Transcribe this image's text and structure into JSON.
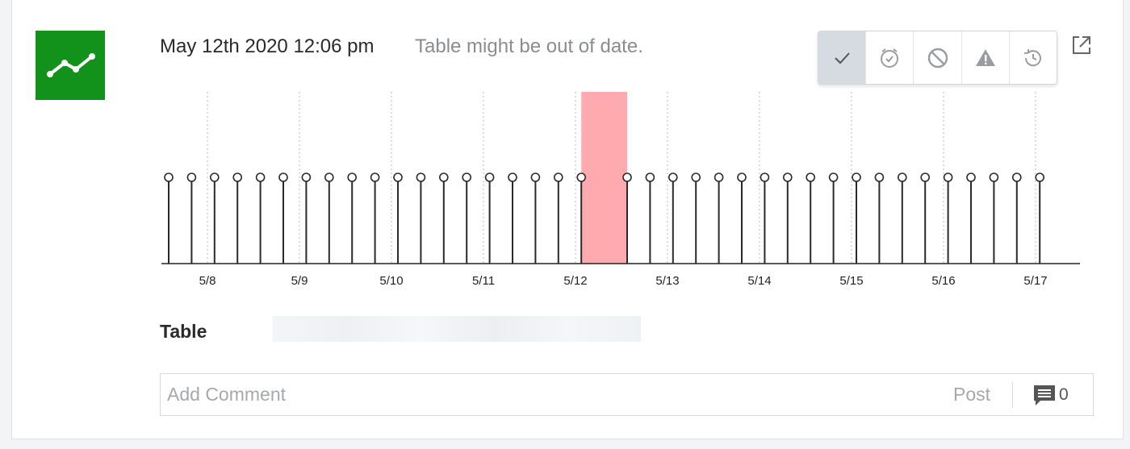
{
  "header": {
    "timestamp": "May 12th 2020 12:06 pm",
    "note": "Table might be out of date."
  },
  "app_icon": "trend-line-icon",
  "toolbar": {
    "buttons": [
      {
        "icon": "checkmark-icon",
        "active": true
      },
      {
        "icon": "alarm-clock-icon",
        "active": false
      },
      {
        "icon": "ban-icon",
        "active": false
      },
      {
        "icon": "warning-icon",
        "active": false
      },
      {
        "icon": "history-icon",
        "active": false
      }
    ]
  },
  "external_link_icon": "external-link-icon",
  "chart_data": {
    "type": "stem",
    "x_start": "5/7 20:00",
    "interval_hours": 6,
    "n_points": 39,
    "missing_index": 19,
    "highlight": {
      "from_index": 18,
      "to_index": 20,
      "color": "#ffaaaf"
    },
    "x_tick_labels": [
      "5/8",
      "5/9",
      "5/10",
      "5/11",
      "5/12",
      "5/13",
      "5/14",
      "5/15",
      "5/16",
      "5/17"
    ],
    "grid": "vertical-dotted"
  },
  "table": {
    "label": "Table",
    "value": ""
  },
  "comment": {
    "placeholder": "Add Comment",
    "post_label": "Post",
    "count": "0"
  },
  "colors": {
    "brand": "#12921a",
    "highlight": "#ffaaaf",
    "active_button": "#d5dbe1"
  }
}
